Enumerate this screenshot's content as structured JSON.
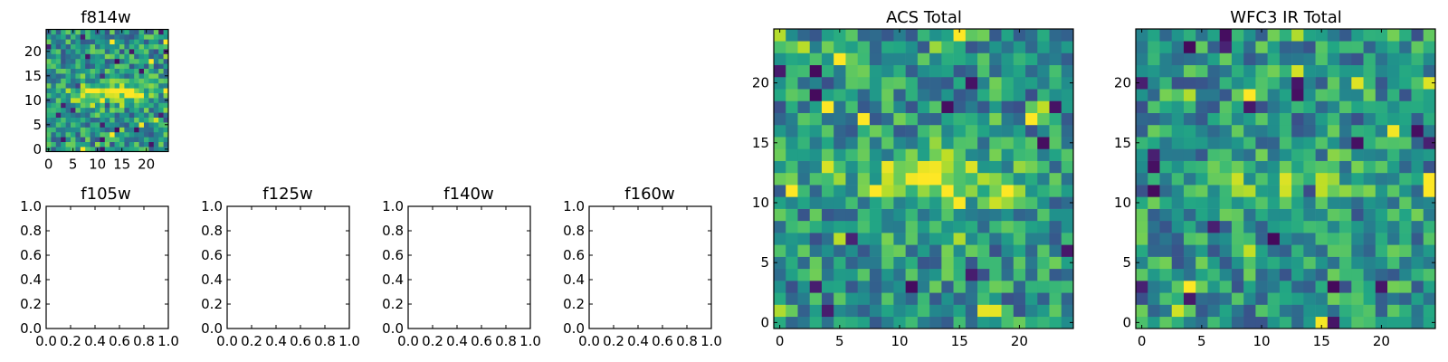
{
  "colors": {
    "background": "#ffffff",
    "axes": "#000000",
    "colormap": "viridis"
  },
  "chart_data": [
    {
      "id": "f814w",
      "type": "heatmap",
      "title": "f814w",
      "xticks": [
        "0",
        "5",
        "10",
        "15",
        "20"
      ],
      "xtick_values": [
        0,
        5,
        10,
        15,
        20
      ],
      "yticks": [
        "0",
        "5",
        "10",
        "15",
        "20"
      ],
      "ytick_values": [
        0,
        5,
        10,
        15,
        20
      ],
      "xlim": [
        -0.5,
        24.5
      ],
      "ylim": [
        -0.5,
        24.5
      ],
      "grid": false,
      "pattern_seed": 3,
      "feature": {
        "center_col": 12.5,
        "center_row": 11.5,
        "spread_col": 5.5,
        "spread_row": 1.8,
        "amplitude": 0.45
      }
    },
    {
      "id": "f105w",
      "type": "empty",
      "title": "f105w",
      "xticks": [
        "0.0",
        "0.2",
        "0.4",
        "0.6",
        "0.8",
        "1.0"
      ],
      "xtick_values": [
        0,
        0.2,
        0.4,
        0.6,
        0.8,
        1.0
      ],
      "yticks": [
        "0.0",
        "0.2",
        "0.4",
        "0.6",
        "0.8",
        "1.0"
      ],
      "ytick_values": [
        0,
        0.2,
        0.4,
        0.6,
        0.8,
        1.0
      ],
      "xlim": [
        0,
        1
      ],
      "ylim": [
        0,
        1
      ],
      "grid": false
    },
    {
      "id": "f125w",
      "type": "empty",
      "title": "f125w",
      "xticks": [
        "0.0",
        "0.2",
        "0.4",
        "0.6",
        "0.8",
        "1.0"
      ],
      "xtick_values": [
        0,
        0.2,
        0.4,
        0.6,
        0.8,
        1.0
      ],
      "yticks": [
        "0.0",
        "0.2",
        "0.4",
        "0.6",
        "0.8",
        "1.0"
      ],
      "ytick_values": [
        0,
        0.2,
        0.4,
        0.6,
        0.8,
        1.0
      ],
      "xlim": [
        0,
        1
      ],
      "ylim": [
        0,
        1
      ],
      "grid": false
    },
    {
      "id": "f140w",
      "type": "empty",
      "title": "f140w",
      "xticks": [
        "0.0",
        "0.2",
        "0.4",
        "0.6",
        "0.8",
        "1.0"
      ],
      "xtick_values": [
        0,
        0.2,
        0.4,
        0.6,
        0.8,
        1.0
      ],
      "yticks": [
        "0.0",
        "0.2",
        "0.4",
        "0.6",
        "0.8",
        "1.0"
      ],
      "ytick_values": [
        0,
        0.2,
        0.4,
        0.6,
        0.8,
        1.0
      ],
      "xlim": [
        0,
        1
      ],
      "ylim": [
        0,
        1
      ],
      "grid": false
    },
    {
      "id": "f160w",
      "type": "empty",
      "title": "f160w",
      "xticks": [
        "0.0",
        "0.2",
        "0.4",
        "0.6",
        "0.8",
        "1.0"
      ],
      "xtick_values": [
        0,
        0.2,
        0.4,
        0.6,
        0.8,
        1.0
      ],
      "yticks": [
        "0.0",
        "0.2",
        "0.4",
        "0.6",
        "0.8",
        "1.0"
      ],
      "ytick_values": [
        0,
        0.2,
        0.4,
        0.6,
        0.8,
        1.0
      ],
      "xlim": [
        0,
        1
      ],
      "ylim": [
        0,
        1
      ],
      "grid": false
    },
    {
      "id": "acs-total",
      "type": "heatmap",
      "title": "ACS Total",
      "xticks": [
        "0",
        "5",
        "10",
        "15",
        "20"
      ],
      "xtick_values": [
        0,
        5,
        10,
        15,
        20
      ],
      "yticks": [
        "0",
        "5",
        "10",
        "15",
        "20"
      ],
      "ytick_values": [
        0,
        5,
        10,
        15,
        20
      ],
      "xlim": [
        -0.5,
        24.5
      ],
      "ylim": [
        -0.5,
        24.5
      ],
      "grid": false,
      "pattern_seed": 17,
      "feature": {
        "center_col": 13.0,
        "center_row": 11.8,
        "spread_col": 5.0,
        "spread_row": 1.6,
        "amplitude": 0.42
      }
    },
    {
      "id": "wfc3-ir-total",
      "type": "heatmap",
      "title": "WFC3 IR Total",
      "xticks": [
        "0",
        "5",
        "10",
        "15",
        "20"
      ],
      "xtick_values": [
        0,
        5,
        10,
        15,
        20
      ],
      "yticks": [
        "0",
        "5",
        "10",
        "15",
        "20"
      ],
      "ytick_values": [
        0,
        5,
        10,
        15,
        20
      ],
      "xlim": [
        -0.5,
        24.5
      ],
      "ylim": [
        -0.5,
        24.5
      ],
      "grid": false,
      "pattern_seed": 41,
      "feature": {
        "center_col": 12.0,
        "center_row": 12.0,
        "spread_col": 4.0,
        "spread_row": 1.2,
        "amplitude": 0.25
      }
    }
  ]
}
